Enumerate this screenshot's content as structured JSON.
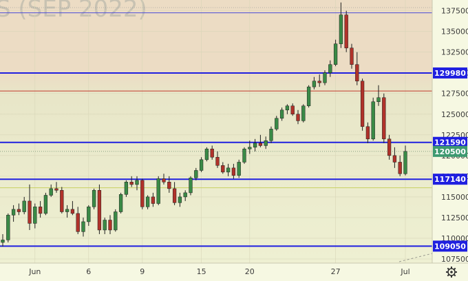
{
  "chart_data": {
    "type": "candlestick",
    "symbol_watermark": "S (SEP 2022)",
    "ylim": [
      107000,
      138800
    ],
    "y_ticks": [
      107500,
      110000,
      112500,
      115000,
      117500,
      120000,
      122500,
      125000,
      127500,
      130000,
      132500,
      135000,
      137500
    ],
    "x_ticks": [
      {
        "label": "Jun",
        "index": 6
      },
      {
        "label": "6",
        "index": 16
      },
      {
        "label": "9",
        "index": 26
      },
      {
        "label": "15",
        "index": 37
      },
      {
        "label": "20",
        "index": 46
      },
      {
        "label": "27",
        "index": 62
      },
      {
        "label": "Jul",
        "index": 75
      }
    ],
    "level_lines": [
      {
        "value": 137250,
        "color": "#4a4ad8",
        "label": "",
        "width": 1
      },
      {
        "value": 129980,
        "color": "#1f1fe0",
        "label": "129980",
        "width": 2
      },
      {
        "value": 127800,
        "color": "#c0392b",
        "label": "",
        "width": 1
      },
      {
        "value": 121590,
        "color": "#1f1fe0",
        "label": "121590",
        "width": 2
      },
      {
        "value": 117140,
        "color": "#1f1fe0",
        "label": "117140",
        "width": 2
      },
      {
        "value": 116100,
        "color": "#c8d060",
        "label": "",
        "width": 1
      },
      {
        "value": 109050,
        "color": "#1f1fe0",
        "label": "109050",
        "width": 2
      }
    ],
    "last_price": {
      "value": 120500,
      "label": "120500",
      "color": "#3d9970"
    },
    "candles_ohlc": [
      [
        109500,
        110500,
        109000,
        109800
      ],
      [
        109800,
        113000,
        109500,
        112800
      ],
      [
        112800,
        114000,
        112000,
        113500
      ],
      [
        113500,
        114200,
        112800,
        113200
      ],
      [
        113200,
        115000,
        112900,
        114500
      ],
      [
        114500,
        116500,
        111000,
        111800
      ],
      [
        111800,
        114200,
        111200,
        113800
      ],
      [
        113800,
        114500,
        112500,
        113000
      ],
      [
        113000,
        115500,
        112800,
        115200
      ],
      [
        115200,
        116500,
        115000,
        116000
      ],
      [
        116000,
        116800,
        115500,
        115800
      ],
      [
        115800,
        116200,
        113000,
        113200
      ],
      [
        113200,
        114000,
        112500,
        113500
      ],
      [
        113500,
        114500,
        112800,
        113000
      ],
      [
        113000,
        113800,
        110500,
        110800
      ],
      [
        110800,
        112500,
        110200,
        112000
      ],
      [
        112000,
        114000,
        111500,
        113800
      ],
      [
        113800,
        116000,
        113500,
        115800
      ],
      [
        115800,
        116500,
        110500,
        111000
      ],
      [
        111000,
        112500,
        110500,
        112200
      ],
      [
        112200,
        112800,
        110500,
        111000
      ],
      [
        111000,
        113500,
        110800,
        113200
      ],
      [
        113200,
        115500,
        113000,
        115300
      ],
      [
        115300,
        117000,
        115000,
        116800
      ],
      [
        116800,
        117500,
        116200,
        116500
      ],
      [
        116500,
        117500,
        115800,
        117000
      ],
      [
        117000,
        117200,
        113500,
        113800
      ],
      [
        113800,
        115200,
        113500,
        115000
      ],
      [
        115000,
        115500,
        113800,
        114200
      ],
      [
        114200,
        117500,
        114000,
        117200
      ],
      [
        117200,
        117800,
        116500,
        116800
      ],
      [
        116800,
        117500,
        115500,
        116000
      ],
      [
        116000,
        116800,
        114000,
        114300
      ],
      [
        114300,
        115500,
        113800,
        115000
      ],
      [
        115000,
        115800,
        114500,
        115500
      ],
      [
        115500,
        117500,
        115200,
        117300
      ],
      [
        117300,
        118500,
        117000,
        118200
      ],
      [
        118200,
        119800,
        118000,
        119500
      ],
      [
        119500,
        121000,
        119300,
        120800
      ],
      [
        120800,
        121200,
        119500,
        119800
      ],
      [
        119800,
        120500,
        118500,
        118800
      ],
      [
        118800,
        119200,
        117800,
        118000
      ],
      [
        118000,
        119000,
        117500,
        118500
      ],
      [
        118500,
        119000,
        117200,
        117600
      ],
      [
        117600,
        119500,
        117300,
        119200
      ],
      [
        119200,
        121000,
        119000,
        120800
      ],
      [
        120800,
        121800,
        120200,
        121000
      ],
      [
        121000,
        122000,
        120500,
        121500
      ],
      [
        121500,
        122500,
        121000,
        121200
      ],
      [
        121200,
        122300,
        120800,
        121800
      ],
      [
        121800,
        123500,
        121500,
        123200
      ],
      [
        123200,
        124800,
        123000,
        124500
      ],
      [
        124500,
        125800,
        124200,
        125500
      ],
      [
        125500,
        126200,
        125000,
        126000
      ],
      [
        126000,
        126300,
        124800,
        125000
      ],
      [
        125000,
        125500,
        123800,
        124200
      ],
      [
        124200,
        126200,
        124000,
        126000
      ],
      [
        126000,
        128500,
        125800,
        128300
      ],
      [
        128300,
        129500,
        128000,
        129000
      ],
      [
        129000,
        129800,
        128300,
        128800
      ],
      [
        128800,
        130300,
        128500,
        130000
      ],
      [
        130000,
        131500,
        129500,
        131000
      ],
      [
        131000,
        134000,
        130800,
        133500
      ],
      [
        133500,
        138500,
        133000,
        137000
      ],
      [
        137000,
        137500,
        132500,
        133000
      ],
      [
        133000,
        133500,
        130500,
        131000
      ],
      [
        131000,
        132500,
        128500,
        129000
      ],
      [
        129000,
        129300,
        123000,
        123500
      ],
      [
        123500,
        124000,
        121500,
        122000
      ],
      [
        122000,
        127000,
        121800,
        126500
      ],
      [
        126500,
        128500,
        126000,
        127000
      ],
      [
        127000,
        127500,
        121500,
        122000
      ],
      [
        122000,
        122500,
        119500,
        120000
      ],
      [
        120000,
        121000,
        118500,
        119200
      ],
      [
        119200,
        120000,
        117500,
        117800
      ],
      [
        117800,
        121200,
        117600,
        120500
      ]
    ]
  }
}
